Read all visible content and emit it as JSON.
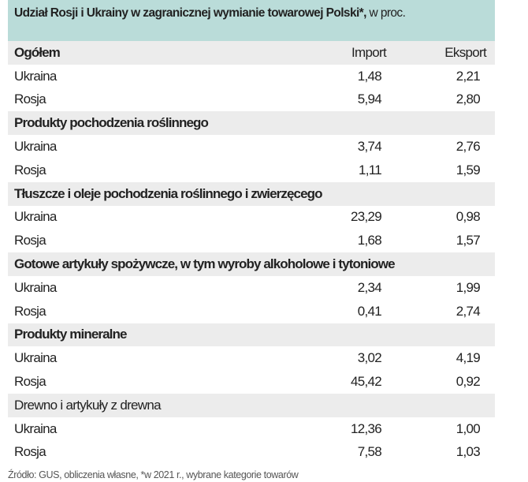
{
  "title": {
    "bold": "Udział Rosji i Ukrainy w zagranicznej wymianie towarowej Polski*,",
    "normal": " w proc."
  },
  "header": {
    "label": "Ogółem",
    "import": "Import",
    "export": "Eksport"
  },
  "sections": [
    {
      "label": "Ogółem",
      "bold": true,
      "rows": [
        {
          "country": "Ukraina",
          "import": "1,48",
          "export": "2,21"
        },
        {
          "country": "Rosja",
          "import": "5,94",
          "export": "2,80"
        }
      ]
    },
    {
      "label": "Produkty pochodzenia roślinnego",
      "bold": true,
      "rows": [
        {
          "country": "Ukraina",
          "import": "3,74",
          "export": "2,76"
        },
        {
          "country": "Rosja",
          "import": "1,11",
          "export": "1,59"
        }
      ]
    },
    {
      "label": "Tłuszcze i oleje pochodzenia roślinnego i zwierzęcego",
      "bold": true,
      "rows": [
        {
          "country": "Ukraina",
          "import": "23,29",
          "export": "0,98"
        },
        {
          "country": "Rosja",
          "import": "1,68",
          "export": "1,57"
        }
      ]
    },
    {
      "label": "Gotowe artykuły spożywcze, w tym wyroby alkoholowe i tytoniowe",
      "bold": true,
      "rows": [
        {
          "country": "Ukraina",
          "import": "2,34",
          "export": "1,99"
        },
        {
          "country": "Rosja",
          "import": "0,41",
          "export": "2,74"
        }
      ]
    },
    {
      "label": "Produkty mineralne",
      "bold": true,
      "rows": [
        {
          "country": "Ukraina",
          "import": "3,02",
          "export": "4,19"
        },
        {
          "country": "Rosja",
          "import": "45,42",
          "export": "0,92"
        }
      ]
    },
    {
      "label": "Drewno i artykuły z drewna",
      "bold": false,
      "rows": [
        {
          "country": "Ukraina",
          "import": "12,36",
          "export": "1,00"
        },
        {
          "country": "Rosja",
          "import": "7,58",
          "export": "1,03"
        }
      ]
    }
  ],
  "footer": "Źródło: GUS, obliczenia własne, *w 2021 r., wybrane kategorie towarów",
  "colors": {
    "title_bg": "#badcd9",
    "section_bg": "#ececec"
  }
}
